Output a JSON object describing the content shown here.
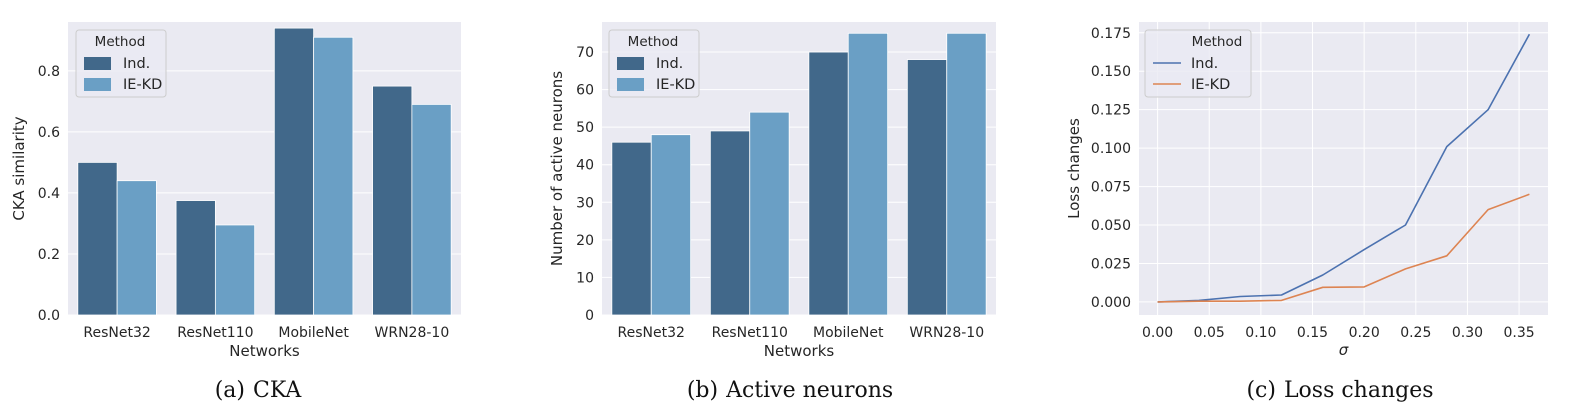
{
  "legend_title": "Method",
  "panels": [
    {
      "caption_label": "(a)",
      "caption_text": "CKA",
      "chart_data": {
        "type": "bar",
        "categories": [
          "ResNet32",
          "ResNet110",
          "MobileNet",
          "WRN28-10"
        ],
        "series": [
          {
            "name": "Ind.",
            "values": [
              0.5,
              0.375,
              0.94,
              0.75
            ]
          },
          {
            "name": "IE-KD",
            "values": [
              0.44,
              0.295,
              0.91,
              0.69
            ]
          }
        ],
        "xlabel": "Networks",
        "ylabel": "CKA similarity",
        "ylim": [
          0,
          0.96
        ],
        "yticks": [
          "0.0",
          "0.2",
          "0.4",
          "0.6",
          "0.8"
        ],
        "grid": true,
        "legend_position": "top-left",
        "colors": [
          "#41688a",
          "#6a9fc5"
        ]
      }
    },
    {
      "caption_label": "(b)",
      "caption_text": "Active neurons",
      "chart_data": {
        "type": "bar",
        "categories": [
          "ResNet32",
          "ResNet110",
          "MobileNet",
          "WRN28-10"
        ],
        "series": [
          {
            "name": "Ind.",
            "values": [
              46,
              49,
              70,
              68
            ]
          },
          {
            "name": "IE-KD",
            "values": [
              48,
              54,
              75,
              75
            ]
          }
        ],
        "xlabel": "Networks",
        "ylabel": "Number of active neurons",
        "ylim": [
          0,
          78
        ],
        "yticks": [
          "0",
          "10",
          "20",
          "30",
          "40",
          "50",
          "60",
          "70"
        ],
        "grid": true,
        "legend_position": "top-left",
        "colors": [
          "#41688a",
          "#6a9fc5"
        ]
      }
    },
    {
      "caption_label": "(c)",
      "caption_text": "Loss changes",
      "chart_data": {
        "type": "line",
        "xlabel": "σ",
        "ylabel": "Loss changes",
        "xlim": [
          -0.018,
          0.378
        ],
        "ylim": [
          -0.0085,
          0.182
        ],
        "xticks": [
          "0.00",
          "0.05",
          "0.10",
          "0.15",
          "0.20",
          "0.25",
          "0.30",
          "0.35"
        ],
        "yticks": [
          "0.000",
          "0.025",
          "0.050",
          "0.075",
          "0.100",
          "0.125",
          "0.150",
          "0.175"
        ],
        "grid": true,
        "legend_position": "top-left",
        "series": [
          {
            "name": "Ind.",
            "color": "#4c72b0",
            "x": [
              0.0,
              0.04,
              0.08,
              0.12,
              0.16,
              0.2,
              0.24,
              0.28,
              0.32,
              0.36
            ],
            "y": [
              0.0,
              0.001,
              0.0035,
              0.0045,
              0.0175,
              0.034,
              0.05,
              0.101,
              0.125,
              0.174
            ]
          },
          {
            "name": "IE-KD",
            "color": "#dd8452",
            "x": [
              0.0,
              0.04,
              0.08,
              0.12,
              0.16,
              0.2,
              0.24,
              0.28,
              0.32,
              0.36
            ],
            "y": [
              0.0,
              0.0005,
              0.0005,
              0.001,
              0.0095,
              0.0098,
              0.0215,
              0.03,
              0.06,
              0.07
            ]
          }
        ]
      }
    }
  ]
}
